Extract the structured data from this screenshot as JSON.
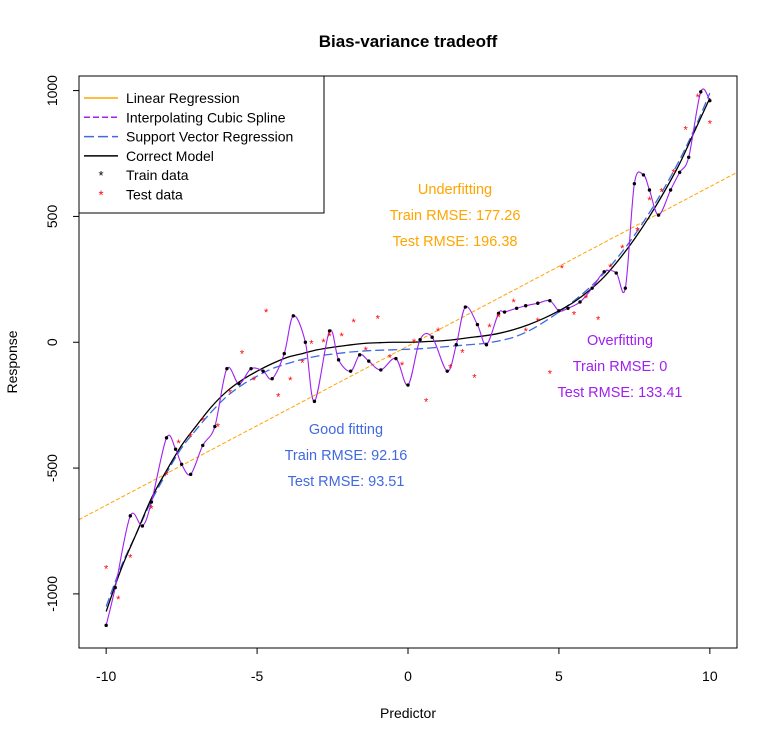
{
  "chart_data": {
    "type": "scatter",
    "title": "Bias-variance tradeoff",
    "xlabel": "Predictor",
    "ylabel": "Response",
    "xlim": [
      -10.9,
      10.9
    ],
    "ylim": [
      -1215,
      1058
    ],
    "xticks": [
      -10,
      -5,
      0,
      5,
      10
    ],
    "yticks": [
      -1000,
      -500,
      0,
      500,
      1000
    ],
    "grid": false,
    "legend_position": "top-left",
    "legend": [
      {
        "label": "Linear Regression",
        "kind": "line",
        "color": "#ffa500",
        "dash": "solid"
      },
      {
        "label": "Interpolating Cubic Spline",
        "kind": "line",
        "color": "#a020f0",
        "dash": "dashed"
      },
      {
        "label": "Support Vector Regression",
        "kind": "line",
        "color": "#4169e1",
        "dash": "longdash"
      },
      {
        "label": "Correct Model",
        "kind": "line",
        "color": "#000000",
        "dash": "solid"
      },
      {
        "label": "Train data",
        "kind": "point",
        "color": "#000000"
      },
      {
        "label": "Test data",
        "kind": "point",
        "color": "#ff0000"
      }
    ],
    "linear_regression": {
      "x": [
        -10.9,
        10.9
      ],
      "y": [
        -705,
        675
      ]
    },
    "correct_model": {
      "x": [
        -10,
        -9.5,
        -9,
        -8.5,
        -8,
        -7.5,
        -7,
        -6.5,
        -6,
        -5.5,
        -5,
        -4.5,
        -4,
        -3.5,
        -3,
        -2.5,
        -2,
        -1.5,
        -1,
        -0.5,
        0,
        0.5,
        1,
        1.5,
        2,
        2.5,
        3,
        3.5,
        4,
        4.5,
        5,
        5.5,
        6,
        6.5,
        7,
        7.5,
        8,
        8.5,
        9,
        9.5,
        10
      ],
      "y": [
        -1070,
        -900,
        -760,
        -620,
        -510,
        -410,
        -330,
        -255,
        -195,
        -150,
        -115,
        -85,
        -60,
        -45,
        -30,
        -20,
        -12,
        -5,
        -2,
        0,
        0,
        2,
        5,
        10,
        18,
        25,
        35,
        50,
        70,
        95,
        125,
        160,
        205,
        260,
        330,
        410,
        500,
        600,
        710,
        840,
        970
      ]
    },
    "support_vector_regression": {
      "x": [
        -10,
        -9.5,
        -9,
        -8.5,
        -8,
        -7.5,
        -7,
        -6.5,
        -6,
        -5.5,
        -5,
        -4.5,
        -4,
        -3.5,
        -3,
        -2.5,
        -2,
        -1.5,
        -1,
        -0.5,
        0,
        0.5,
        1,
        1.5,
        2,
        2.5,
        3,
        3.5,
        4,
        4.5,
        5,
        5.5,
        6,
        6.5,
        7,
        7.5,
        8,
        8.5,
        9,
        9.5,
        10
      ],
      "y": [
        -1050,
        -890,
        -760,
        -630,
        -520,
        -420,
        -345,
        -275,
        -215,
        -170,
        -135,
        -105,
        -85,
        -68,
        -55,
        -47,
        -40,
        -35,
        -32,
        -30,
        -28,
        -25,
        -20,
        -15,
        -10,
        -5,
        5,
        20,
        45,
        80,
        120,
        165,
        215,
        275,
        345,
        425,
        515,
        615,
        725,
        850,
        990
      ]
    },
    "train_data": {
      "x": [
        -10,
        -9.7,
        -9.2,
        -8.8,
        -8.5,
        -8.0,
        -7.7,
        -7.5,
        -7.2,
        -6.8,
        -6.4,
        -6.0,
        -5.6,
        -5.2,
        -4.8,
        -4.5,
        -4.1,
        -3.8,
        -3.4,
        -3.1,
        -2.6,
        -2.3,
        -1.9,
        -1.6,
        -1.3,
        -0.9,
        -0.4,
        0,
        0.4,
        0.8,
        1.3,
        1.6,
        1.9,
        2.3,
        2.6,
        3.0,
        3.2,
        3.6,
        3.9,
        4.3,
        4.7,
        5.0,
        5.3,
        5.7,
        6.1,
        6.5,
        6.9,
        7.2,
        7.5,
        7.8,
        8.0,
        8.3,
        8.7,
        9.0,
        9.3,
        9.7,
        10.0
      ],
      "y": [
        -1125,
        -975,
        -690,
        -730,
        -635,
        -380,
        -425,
        -485,
        -525,
        -410,
        -335,
        -105,
        -165,
        -105,
        -115,
        -145,
        -45,
        105,
        0,
        -235,
        45,
        -70,
        -115,
        -50,
        -75,
        -110,
        -65,
        -170,
        10,
        20,
        -115,
        -10,
        140,
        70,
        -10,
        115,
        120,
        135,
        145,
        155,
        165,
        125,
        135,
        160,
        215,
        280,
        275,
        215,
        630,
        665,
        605,
        505,
        605,
        675,
        735,
        995,
        960
      ]
    },
    "test_data": {
      "x": [
        -10,
        -9.6,
        -9.2,
        -8.5,
        -8.0,
        -7.6,
        -7.2,
        -6.8,
        -6.3,
        -5.9,
        -5.5,
        -5.1,
        -4.7,
        -4.3,
        -3.9,
        -3.5,
        -3.2,
        -2.8,
        -2.6,
        -2.2,
        -1.8,
        -1.4,
        -1.0,
        -0.6,
        -0.2,
        0.2,
        0.6,
        1.0,
        1.4,
        1.8,
        2.2,
        2.7,
        3.0,
        3.5,
        3.9,
        4.3,
        4.7,
        5.1,
        5.5,
        5.9,
        6.3,
        6.7,
        7.1,
        7.6,
        8.0,
        8.4,
        8.8,
        9.2,
        9.6,
        10.0
      ],
      "y": [
        -900,
        -1020,
        -855,
        -660,
        -525,
        -400,
        -375,
        -310,
        -335,
        -200,
        -45,
        -150,
        120,
        -215,
        -150,
        -80,
        -5,
        0,
        25,
        25,
        80,
        -30,
        95,
        -60,
        -90,
        0,
        -235,
        45,
        -100,
        -40,
        -140,
        60,
        100,
        160,
        45,
        85,
        -125,
        295,
        110,
        175,
        90,
        300,
        375,
        445,
        565,
        600,
        675,
        845,
        975,
        870
      ]
    },
    "annotations": [
      {
        "lines": [
          "Underfitting",
          "Train RMSE: 177.26",
          "Test RMSE: 196.38"
        ],
        "color": "#ffa500"
      },
      {
        "lines": [
          "Good fitting",
          "Train RMSE: 92.16",
          "Test RMSE: 93.51"
        ],
        "color": "#4169e1"
      },
      {
        "lines": [
          "Overfitting",
          "Train RMSE: 0",
          "Test RMSE: 133.41"
        ],
        "color": "#a020f0"
      }
    ]
  }
}
